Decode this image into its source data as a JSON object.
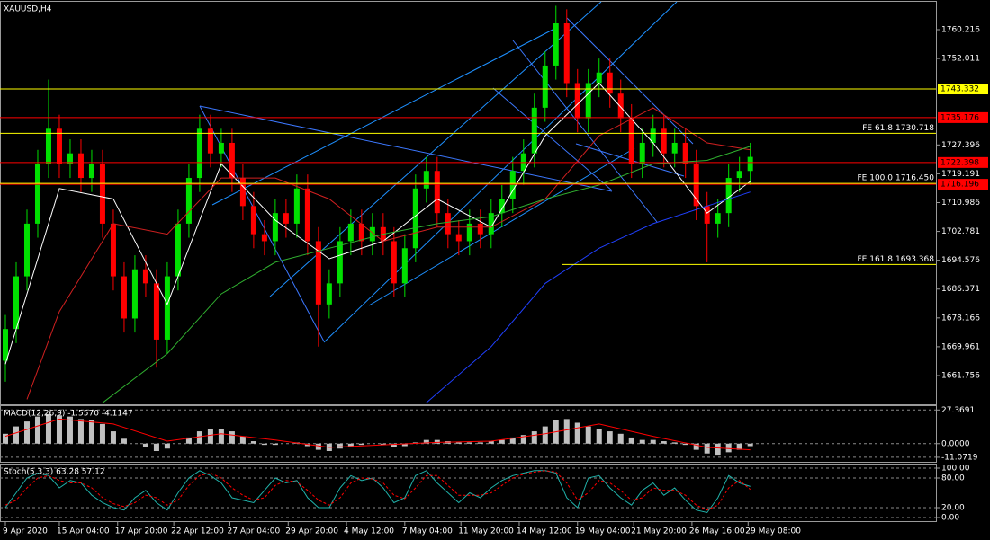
{
  "chart_data": [
    {
      "type": "candlestick",
      "title": "XAUUSD,H4",
      "xlim": [
        -0.5,
        86.2
      ],
      "ylim": [
        1653.57,
        1768.14
      ],
      "yticks": [
        1760.216,
        1752.011,
        1727.396,
        1719.191,
        1710.986,
        1702.781,
        1694.576,
        1686.371,
        1678.166,
        1669.961,
        1661.756
      ],
      "up_color": "#00e000",
      "down_color": "#ff0000",
      "open": [
        1666,
        1675,
        1690,
        1705,
        1722,
        1732,
        1722,
        1725,
        1718,
        1722,
        1705,
        1690,
        1678,
        1692,
        1688,
        1672,
        1690,
        1705,
        1718,
        1732,
        1725,
        1728,
        1718,
        1710,
        1702,
        1700,
        1708,
        1705,
        1715,
        1700,
        1682,
        1688,
        1700,
        1705,
        1700,
        1704,
        1700,
        1688,
        1698,
        1715,
        1720,
        1708,
        1702,
        1700,
        1705,
        1702,
        1708,
        1712,
        1720,
        1725,
        1738,
        1750,
        1762,
        1745,
        1735,
        1745,
        1748,
        1742,
        1735,
        1722,
        1728,
        1732,
        1725,
        1728,
        1722,
        1710,
        1705,
        1708,
        1718,
        1720
      ],
      "high": [
        1679,
        1694,
        1709,
        1726,
        1746,
        1736,
        1729,
        1729,
        1726,
        1726,
        1709,
        1694,
        1696,
        1696,
        1692,
        1694,
        1709,
        1722,
        1736,
        1736,
        1732,
        1732,
        1722,
        1714,
        1706,
        1712,
        1712,
        1719,
        1719,
        1704,
        1692,
        1704,
        1709,
        1709,
        1708,
        1708,
        1704,
        1702,
        1719,
        1724,
        1724,
        1712,
        1706,
        1709,
        1709,
        1712,
        1716,
        1724,
        1729,
        1742,
        1754,
        1767,
        1766,
        1749,
        1749,
        1752,
        1752,
        1746,
        1739,
        1732,
        1736,
        1736,
        1732,
        1732,
        1726,
        1714,
        1712,
        1722,
        1724,
        1728
      ],
      "low": [
        1660,
        1671,
        1686,
        1701,
        1718,
        1718,
        1718,
        1714,
        1714,
        1701,
        1686,
        1674,
        1674,
        1684,
        1664,
        1668,
        1686,
        1701,
        1714,
        1721,
        1721,
        1714,
        1706,
        1698,
        1696,
        1696,
        1701,
        1701,
        1696,
        1670,
        1678,
        1684,
        1696,
        1696,
        1696,
        1696,
        1684,
        1684,
        1694,
        1711,
        1704,
        1698,
        1696,
        1696,
        1698,
        1698,
        1704,
        1708,
        1716,
        1721,
        1734,
        1746,
        1741,
        1731,
        1731,
        1741,
        1738,
        1731,
        1718,
        1718,
        1724,
        1721,
        1721,
        1718,
        1706,
        1694,
        1701,
        1704,
        1714,
        1716
      ],
      "close": [
        1675,
        1690,
        1705,
        1722,
        1732,
        1722,
        1725,
        1718,
        1722,
        1705,
        1690,
        1678,
        1692,
        1688,
        1672,
        1690,
        1705,
        1718,
        1732,
        1725,
        1728,
        1718,
        1710,
        1702,
        1700,
        1708,
        1705,
        1715,
        1700,
        1682,
        1688,
        1700,
        1705,
        1700,
        1704,
        1700,
        1688,
        1698,
        1715,
        1720,
        1708,
        1702,
        1700,
        1705,
        1702,
        1708,
        1712,
        1720,
        1725,
        1738,
        1750,
        1762,
        1745,
        1735,
        1745,
        1748,
        1742,
        1735,
        1722,
        1728,
        1732,
        1725,
        1728,
        1722,
        1710,
        1705,
        1708,
        1718,
        1720,
        1724
      ],
      "lines": [
        {
          "color": "#ffffff",
          "x": [
            0,
            5,
            10,
            15,
            20,
            25,
            30,
            35,
            40,
            45,
            50,
            55,
            60,
            65,
            69
          ],
          "values": [
            1665,
            1715,
            1712,
            1682,
            1722,
            1706,
            1695,
            1700,
            1712,
            1704,
            1730,
            1745,
            1728,
            1708,
            1717
          ]
        },
        {
          "color": "#d02020",
          "x": [
            2,
            5,
            10,
            15,
            20,
            25,
            30,
            35,
            40,
            45,
            50,
            55,
            60,
            65,
            69
          ],
          "values": [
            1655,
            1680,
            1705,
            1702,
            1718,
            1718,
            1712,
            1700,
            1704,
            1704,
            1712,
            1730,
            1738,
            1728,
            1726
          ]
        },
        {
          "color": "#30b030",
          "x": [
            9,
            15,
            20,
            25,
            30,
            35,
            40,
            45,
            50,
            55,
            60,
            65,
            69
          ],
          "values": [
            1654,
            1668,
            1685,
            1694,
            1698,
            1702,
            1705,
            1707,
            1712,
            1716,
            1722,
            1723,
            1727
          ]
        },
        {
          "color": "#2040ff",
          "x": [
            39,
            45,
            50,
            55,
            60,
            65,
            69
          ],
          "values": [
            1654,
            1670,
            1688,
            1698,
            1705,
            1710,
            1714
          ]
        }
      ],
      "levels": [
        {
          "value": 1743.332,
          "color": "#ffff00",
          "boxed": true
        },
        {
          "value": 1735.176,
          "color": "#ff0000",
          "boxed": true
        },
        {
          "value": 1722.398,
          "color": "#ff0000",
          "boxed": true
        },
        {
          "value": 1716.196,
          "color": "#ff0000",
          "boxed": true
        },
        {
          "value": 1730.718,
          "color": "#ffff00",
          "label": "FE 61.8"
        },
        {
          "value": 1716.45,
          "value_label": "1716.450",
          "color": "#ffff00",
          "label": "FE 100.0"
        },
        {
          "value": 1693.368,
          "color": "#ffff00",
          "label": "FE 161.8",
          "start": 51.6
        }
      ]
    },
    {
      "type": "macd",
      "title": "MACD(12,26,9) -1.5570 -4.1147",
      "xlim": [
        -0.5,
        86.2
      ],
      "ylim": [
        -15.5,
        30.5
      ],
      "grid": true,
      "yticks": [
        27.3691,
        {
          "value": 0,
          "label": "0.0000"
        },
        -11.0719
      ],
      "color": "#c0c0c0",
      "values": [
        8,
        14,
        18,
        22,
        24,
        23,
        22,
        20,
        19,
        16,
        10,
        4,
        0,
        -3,
        -6,
        -4,
        0,
        5,
        10,
        12,
        12,
        10,
        6,
        2,
        -1,
        -1,
        0,
        1,
        -2,
        -5,
        -6,
        -4,
        -2,
        -1,
        0,
        -1,
        -3,
        -2,
        1,
        3,
        3,
        2,
        1,
        1,
        1,
        2,
        3,
        5,
        7,
        10,
        14,
        19,
        20,
        17,
        14,
        12,
        10,
        8,
        5,
        3,
        3,
        2,
        1,
        -1,
        -5,
        -8,
        -9,
        -7,
        -5,
        -2
      ],
      "lines": [
        {
          "color": "#ff0000",
          "x": [
            0,
            5,
            10,
            15,
            20,
            25,
            30,
            35,
            40,
            45,
            50,
            55,
            60,
            65,
            69
          ],
          "values": [
            6,
            20,
            16,
            2,
            8,
            3,
            -3,
            -1,
            1,
            2,
            8,
            16,
            6,
            -3,
            -5
          ]
        }
      ]
    },
    {
      "type": "stoch",
      "title": "Stoch(5,3,3) 63.28 57.12",
      "xlim": [
        -0.5,
        86.2
      ],
      "ylim": [
        -7.3,
        107.3
      ],
      "grid": true,
      "yticks": [
        {
          "value": 100,
          "label": "100.00"
        },
        {
          "value": 80,
          "label": "80.00"
        },
        {
          "value": 20,
          "label": "20.00"
        },
        {
          "value": 0,
          "label": "0.00"
        }
      ],
      "xticks": [
        {
          "value": 0,
          "label": "9 Apr 2020"
        },
        {
          "value": 5,
          "label": "15 Apr 04:00"
        },
        {
          "value": 10.4,
          "label": "17 Apr 20:00"
        },
        {
          "value": 15.6,
          "label": "22 Apr 12:00"
        },
        {
          "value": 20.8,
          "label": "27 Apr 04:00"
        },
        {
          "value": 26.2,
          "label": "29 Apr 20:00"
        },
        {
          "value": 31.6,
          "label": "4 May 12:00"
        },
        {
          "value": 37,
          "label": "7 May 04:00"
        },
        {
          "value": 42.2,
          "label": "11 May 20:00"
        },
        {
          "value": 47.6,
          "label": "14 May 12:00"
        },
        {
          "value": 53,
          "label": "19 May 04:00"
        },
        {
          "value": 58.2,
          "label": "21 May 20:00"
        },
        {
          "value": 63.6,
          "label": "26 May 16:00"
        },
        {
          "value": 68.8,
          "label": "29 May 08:00"
        }
      ],
      "lines": [
        {
          "color": "#20b2aa",
          "x": [
            0,
            1,
            2,
            3,
            4,
            5,
            6,
            7,
            8,
            9,
            10,
            11,
            12,
            13,
            14,
            15,
            16,
            17,
            18,
            19,
            20,
            21,
            22,
            23,
            24,
            25,
            26,
            27,
            28,
            29,
            30,
            31,
            32,
            33,
            34,
            35,
            36,
            37,
            38,
            39,
            40,
            41,
            42,
            43,
            44,
            45,
            46,
            47,
            48,
            49,
            50,
            51,
            52,
            53,
            54,
            55,
            56,
            57,
            58,
            59,
            60,
            61,
            62,
            63,
            64,
            65,
            66,
            67,
            68,
            69
          ],
          "values": [
            20,
            50,
            80,
            90,
            85,
            60,
            75,
            70,
            45,
            30,
            20,
            15,
            40,
            55,
            30,
            15,
            50,
            80,
            95,
            85,
            70,
            40,
            35,
            30,
            55,
            80,
            70,
            75,
            40,
            20,
            20,
            60,
            85,
            75,
            80,
            60,
            30,
            40,
            85,
            95,
            70,
            50,
            30,
            50,
            40,
            60,
            75,
            85,
            90,
            95,
            95,
            90,
            40,
            20,
            80,
            85,
            60,
            40,
            25,
            55,
            70,
            45,
            60,
            35,
            15,
            10,
            40,
            85,
            70,
            63
          ]
        },
        {
          "color": "#ff0000",
          "dashed": true,
          "x": [
            0,
            1,
            2,
            3,
            4,
            5,
            6,
            7,
            8,
            9,
            10,
            11,
            12,
            13,
            14,
            15,
            16,
            17,
            18,
            19,
            20,
            21,
            22,
            23,
            24,
            25,
            26,
            27,
            28,
            29,
            30,
            31,
            32,
            33,
            34,
            35,
            36,
            37,
            38,
            39,
            40,
            41,
            42,
            43,
            44,
            45,
            46,
            47,
            48,
            49,
            50,
            51,
            52,
            53,
            54,
            55,
            56,
            57,
            58,
            59,
            60,
            61,
            62,
            63,
            64,
            65,
            66,
            67,
            68,
            69
          ],
          "values": [
            25,
            35,
            60,
            80,
            85,
            75,
            70,
            70,
            60,
            40,
            28,
            22,
            30,
            45,
            40,
            25,
            35,
            65,
            85,
            90,
            80,
            60,
            45,
            35,
            40,
            65,
            75,
            72,
            55,
            35,
            25,
            40,
            70,
            80,
            78,
            70,
            45,
            38,
            60,
            85,
            85,
            65,
            45,
            45,
            45,
            50,
            65,
            80,
            88,
            92,
            95,
            92,
            70,
            35,
            50,
            75,
            70,
            55,
            35,
            40,
            60,
            55,
            55,
            45,
            25,
            15,
            25,
            60,
            75,
            57
          ]
        }
      ]
    }
  ]
}
